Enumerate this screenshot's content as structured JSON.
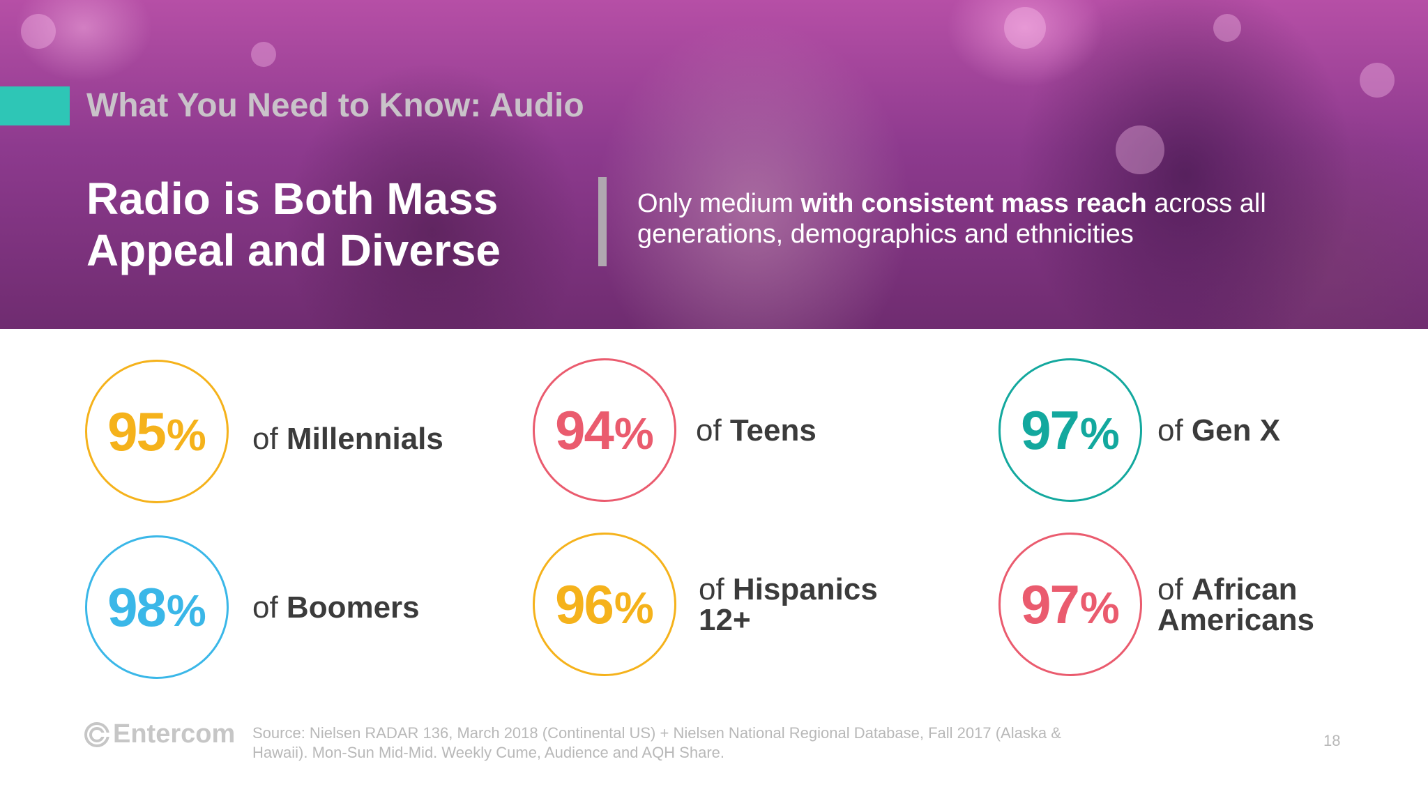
{
  "header": {
    "section_title": "What You Need to Know: Audio",
    "headline": "Radio is Both Mass Appeal and Diverse",
    "tagline": {
      "pre": "Only medium ",
      "bold": "with consistent mass reach",
      "post": " across all generations, demographics and ethnicities"
    }
  },
  "stats": [
    {
      "value": "95",
      "unit": "%",
      "prefix": "of ",
      "label": "Millennials",
      "color": "#f5b21b"
    },
    {
      "value": "94",
      "unit": "%",
      "prefix": "of ",
      "label": "Teens",
      "color": "#ea5b6e"
    },
    {
      "value": "97",
      "unit": "%",
      "prefix": "of ",
      "label": "Gen X",
      "color": "#13a89e"
    },
    {
      "value": "98",
      "unit": "%",
      "prefix": "of ",
      "label": "Boomers",
      "color": "#3ab7e8"
    },
    {
      "value": "96",
      "unit": "%",
      "prefix": "of ",
      "label": "Hispanics",
      "label_line2": "12+",
      "color": "#f5b21b"
    },
    {
      "value": "97",
      "unit": "%",
      "prefix": "of ",
      "label": "African",
      "label_line2": "Americans",
      "color": "#ea5b6e"
    }
  ],
  "footer": {
    "logo": "Entercom",
    "source": "Source: Nielsen RADAR 136, March 2018 (Continental US) + Nielsen National Regional Database, Fall 2017 (Alaska & Hawaii). Mon-Sun Mid-Mid. Weekly Cume, Audience and AQH Share.",
    "page_number": "18"
  },
  "colors": {
    "accent": "#2ec6b6",
    "hero": "#8d3a8e"
  }
}
